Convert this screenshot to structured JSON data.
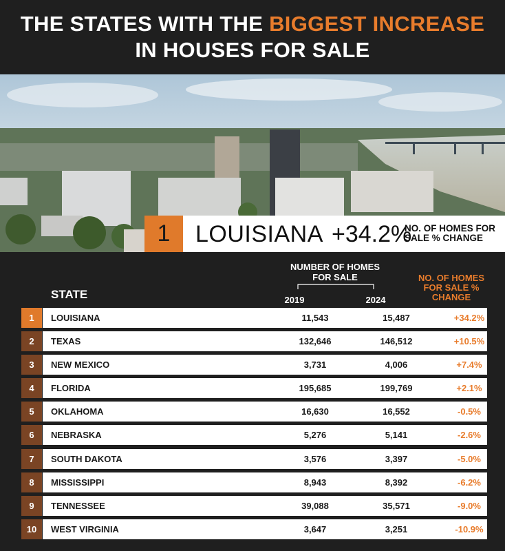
{
  "header": {
    "title_part1": "THE STATES WITH THE ",
    "title_accent": "BIGGEST INCREASE",
    "title_line2": "IN HOUSES FOR SALE"
  },
  "banner": {
    "rank": "1",
    "state": "LOUISIANA",
    "change": "+34.2%",
    "label": "NO. OF HOMES FOR SALE % CHANGE"
  },
  "colors": {
    "accent": "#e87c2c",
    "rank_first": "#e07a2b",
    "rank_other": "#7a4424",
    "background": "#1f1f1f"
  },
  "chart_data": {
    "type": "table",
    "columns": {
      "state": "STATE",
      "group": "NUMBER OF HOMES FOR SALE",
      "y2019": "2019",
      "y2024": "2024",
      "change": "NO. OF HOMES FOR SALE % CHANGE"
    },
    "rows": [
      {
        "rank": "1",
        "state": "LOUISIANA",
        "y2019": "11,543",
        "y2024": "15,487",
        "change": "+34.2%"
      },
      {
        "rank": "2",
        "state": "TEXAS",
        "y2019": "132,646",
        "y2024": "146,512",
        "change": "+10.5%"
      },
      {
        "rank": "3",
        "state": "NEW MEXICO",
        "y2019": "3,731",
        "y2024": "4,006",
        "change": "+7.4%"
      },
      {
        "rank": "4",
        "state": "FLORIDA",
        "y2019": "195,685",
        "y2024": "199,769",
        "change": "+2.1%"
      },
      {
        "rank": "5",
        "state": "OKLAHOMA",
        "y2019": "16,630",
        "y2024": "16,552",
        "change": "-0.5%"
      },
      {
        "rank": "6",
        "state": "NEBRASKA",
        "y2019": "5,276",
        "y2024": "5,141",
        "change": "-2.6%"
      },
      {
        "rank": "7",
        "state": "SOUTH DAKOTA",
        "y2019": "3,576",
        "y2024": "3,397",
        "change": "-5.0%"
      },
      {
        "rank": "8",
        "state": "MISSISSIPPI",
        "y2019": "8,943",
        "y2024": "8,392",
        "change": "-6.2%"
      },
      {
        "rank": "9",
        "state": "TENNESSEE",
        "y2019": "39,088",
        "y2024": "35,571",
        "change": "-9.0%"
      },
      {
        "rank": "10",
        "state": "WEST VIRGINIA",
        "y2019": "3,647",
        "y2024": "3,251",
        "change": "-10.9%"
      }
    ]
  }
}
